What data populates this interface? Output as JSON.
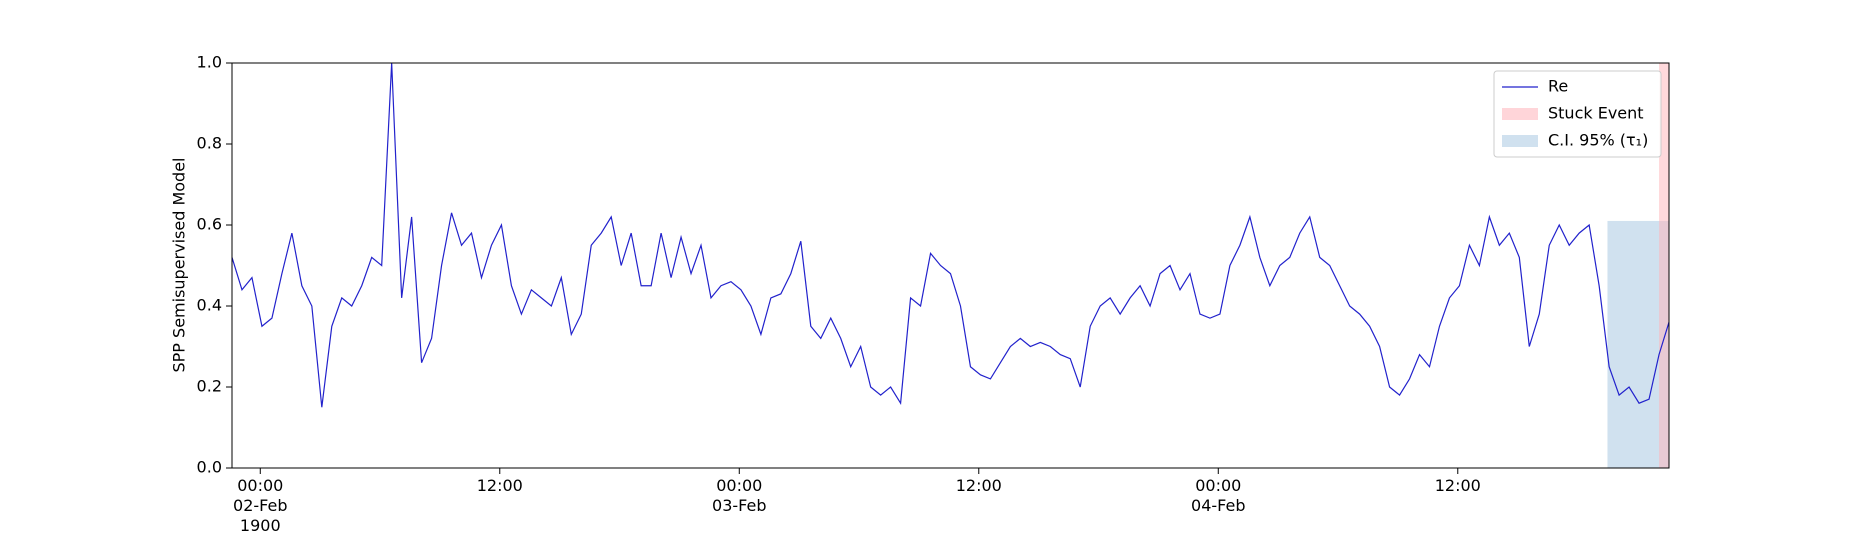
{
  "chart_data": {
    "type": "line",
    "ylabel": "SPP Semisupervised Model",
    "x": [
      "1900-02-01T22:35",
      "1900-02-01T23:05",
      "1900-02-01T23:35",
      "1900-02-02T00:05",
      "1900-02-02T00:35",
      "1900-02-02T01:05",
      "1900-02-02T01:35",
      "1900-02-02T02:05",
      "1900-02-02T02:35",
      "1900-02-02T03:05",
      "1900-02-02T03:35",
      "1900-02-02T04:05",
      "1900-02-02T04:35",
      "1900-02-02T05:05",
      "1900-02-02T05:35",
      "1900-02-02T06:05",
      "1900-02-02T06:35",
      "1900-02-02T07:05",
      "1900-02-02T07:35",
      "1900-02-02T08:05",
      "1900-02-02T08:35",
      "1900-02-02T09:05",
      "1900-02-02T09:35",
      "1900-02-02T10:05",
      "1900-02-02T10:35",
      "1900-02-02T11:05",
      "1900-02-02T11:35",
      "1900-02-02T12:05",
      "1900-02-02T12:35",
      "1900-02-02T13:05",
      "1900-02-02T13:35",
      "1900-02-02T14:05",
      "1900-02-02T14:35",
      "1900-02-02T15:05",
      "1900-02-02T15:35",
      "1900-02-02T16:05",
      "1900-02-02T16:35",
      "1900-02-02T17:05",
      "1900-02-02T17:35",
      "1900-02-02T18:05",
      "1900-02-02T18:35",
      "1900-02-02T19:05",
      "1900-02-02T19:35",
      "1900-02-02T20:05",
      "1900-02-02T20:35",
      "1900-02-02T21:05",
      "1900-02-02T21:35",
      "1900-02-02T22:05",
      "1900-02-02T22:35",
      "1900-02-02T23:05",
      "1900-02-02T23:35",
      "1900-02-03T00:05",
      "1900-02-03T00:35",
      "1900-02-03T01:05",
      "1900-02-03T01:35",
      "1900-02-03T02:05",
      "1900-02-03T02:35",
      "1900-02-03T03:05",
      "1900-02-03T03:35",
      "1900-02-03T04:05",
      "1900-02-03T04:35",
      "1900-02-03T05:05",
      "1900-02-03T05:35",
      "1900-02-03T06:05",
      "1900-02-03T06:35",
      "1900-02-03T07:05",
      "1900-02-03T07:35",
      "1900-02-03T08:05",
      "1900-02-03T08:35",
      "1900-02-03T09:05",
      "1900-02-03T09:35",
      "1900-02-03T10:05",
      "1900-02-03T10:35",
      "1900-02-03T11:05",
      "1900-02-03T11:35",
      "1900-02-03T12:05",
      "1900-02-03T12:35",
      "1900-02-03T13:05",
      "1900-02-03T13:35",
      "1900-02-03T14:05",
      "1900-02-03T14:35",
      "1900-02-03T15:05",
      "1900-02-03T15:35",
      "1900-02-03T16:05",
      "1900-02-03T16:35",
      "1900-02-03T17:05",
      "1900-02-03T17:35",
      "1900-02-03T18:05",
      "1900-02-03T18:35",
      "1900-02-03T19:05",
      "1900-02-03T19:35",
      "1900-02-03T20:05",
      "1900-02-03T20:35",
      "1900-02-03T21:05",
      "1900-02-03T21:35",
      "1900-02-03T22:05",
      "1900-02-03T22:35",
      "1900-02-03T23:05",
      "1900-02-03T23:35",
      "1900-02-04T00:05",
      "1900-02-04T00:35",
      "1900-02-04T01:05",
      "1900-02-04T01:35",
      "1900-02-04T02:05",
      "1900-02-04T02:35",
      "1900-02-04T03:05",
      "1900-02-04T03:35",
      "1900-02-04T04:05",
      "1900-02-04T04:35",
      "1900-02-04T05:05",
      "1900-02-04T05:35",
      "1900-02-04T06:05",
      "1900-02-04T06:35",
      "1900-02-04T07:05",
      "1900-02-04T07:35",
      "1900-02-04T08:05",
      "1900-02-04T08:35",
      "1900-02-04T09:05",
      "1900-02-04T09:35",
      "1900-02-04T10:05",
      "1900-02-04T10:35",
      "1900-02-04T11:05",
      "1900-02-04T11:35",
      "1900-02-04T12:05",
      "1900-02-04T12:35",
      "1900-02-04T13:05",
      "1900-02-04T13:35",
      "1900-02-04T14:05",
      "1900-02-04T14:35",
      "1900-02-04T15:05",
      "1900-02-04T15:35",
      "1900-02-04T16:05",
      "1900-02-04T16:35",
      "1900-02-04T17:05",
      "1900-02-04T17:35",
      "1900-02-04T18:05",
      "1900-02-04T18:35",
      "1900-02-04T19:05",
      "1900-02-04T19:35",
      "1900-02-04T20:05",
      "1900-02-04T20:35",
      "1900-02-04T21:05",
      "1900-02-04T21:35",
      "1900-02-04T22:05",
      "1900-02-04T22:35"
    ],
    "series": [
      {
        "name": "Re",
        "color": "#2222cc",
        "values": [
          0.52,
          0.44,
          0.47,
          0.35,
          0.37,
          0.48,
          0.58,
          0.45,
          0.4,
          0.15,
          0.35,
          0.42,
          0.4,
          0.45,
          0.52,
          0.5,
          1.0,
          0.42,
          0.62,
          0.26,
          0.32,
          0.5,
          0.63,
          0.55,
          0.58,
          0.47,
          0.55,
          0.6,
          0.45,
          0.38,
          0.44,
          0.42,
          0.4,
          0.47,
          0.33,
          0.38,
          0.55,
          0.58,
          0.62,
          0.5,
          0.58,
          0.45,
          0.45,
          0.58,
          0.47,
          0.57,
          0.48,
          0.55,
          0.42,
          0.45,
          0.46,
          0.44,
          0.4,
          0.33,
          0.42,
          0.43,
          0.48,
          0.56,
          0.35,
          0.32,
          0.37,
          0.32,
          0.25,
          0.3,
          0.2,
          0.18,
          0.2,
          0.16,
          0.42,
          0.4,
          0.53,
          0.5,
          0.48,
          0.4,
          0.25,
          0.23,
          0.22,
          0.26,
          0.3,
          0.32,
          0.3,
          0.31,
          0.3,
          0.28,
          0.27,
          0.2,
          0.35,
          0.4,
          0.42,
          0.38,
          0.42,
          0.45,
          0.4,
          0.48,
          0.5,
          0.44,
          0.48,
          0.38,
          0.37,
          0.38,
          0.5,
          0.55,
          0.62,
          0.52,
          0.45,
          0.5,
          0.52,
          0.58,
          0.62,
          0.52,
          0.5,
          0.45,
          0.4,
          0.38,
          0.35,
          0.3,
          0.2,
          0.18,
          0.22,
          0.28,
          0.25,
          0.35,
          0.42,
          0.45,
          0.55,
          0.5,
          0.62,
          0.55,
          0.58,
          0.52,
          0.3,
          0.38,
          0.55,
          0.6,
          0.55,
          0.58,
          0.6,
          0.45,
          0.25,
          0.18,
          0.2,
          0.16,
          0.17,
          0.28,
          0.36
        ]
      }
    ],
    "stuck_event": {
      "name": "Stuck Event",
      "color": "#ffb3ba",
      "start": "1900-02-04T22:05",
      "end": "1900-02-04T22:35"
    },
    "ci_band": {
      "name": "C.I. 95% (τ₁)",
      "color": "#a9c8e2",
      "start": "1900-02-04T19:30",
      "end": "1900-02-04T22:35",
      "low": 0,
      "high": 0.61
    },
    "xlim": [
      "1900-02-01T22:35",
      "1900-02-04T22:35"
    ],
    "xticks": [
      {
        "value": "1900-02-02T00:00",
        "label": "00:00\n02-Feb\n1900"
      },
      {
        "value": "1900-02-02T12:00",
        "label": "12:00"
      },
      {
        "value": "1900-02-03T00:00",
        "label": "00:00\n03-Feb"
      },
      {
        "value": "1900-02-03T12:00",
        "label": "12:00"
      },
      {
        "value": "1900-02-04T00:00",
        "label": "00:00\n04-Feb"
      },
      {
        "value": "1900-02-04T12:00",
        "label": "12:00"
      }
    ],
    "ylim": [
      0,
      1
    ],
    "yticks": [
      {
        "value": 0,
        "label": "0.0"
      },
      0.2,
      0.4,
      0.6,
      0.8,
      {
        "value": 1,
        "label": "1.0"
      }
    ],
    "legend": "upper right"
  }
}
